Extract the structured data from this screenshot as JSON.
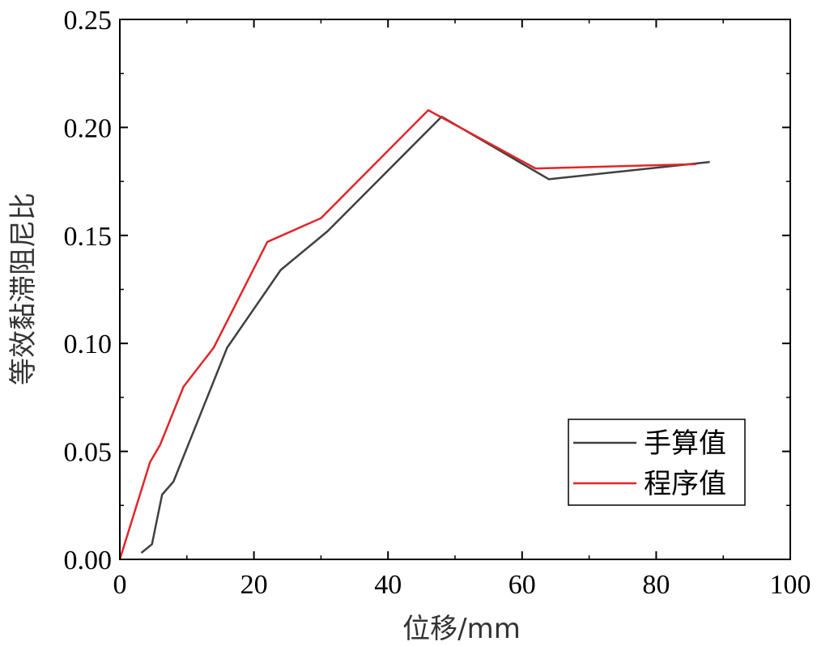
{
  "chart_data": {
    "type": "line",
    "title": "",
    "xlabel": "位移/mm",
    "ylabel": "等效黏滞阻尼比",
    "xlim": [
      0,
      100
    ],
    "ylim": [
      0,
      0.25
    ],
    "xticks": [
      "0",
      "20",
      "40",
      "60",
      "80",
      "100"
    ],
    "yticks": [
      "0.00",
      "0.05",
      "0.10",
      "0.15",
      "0.20",
      "0.25"
    ],
    "grid": false,
    "legend_position": "bottom-right",
    "series": [
      {
        "name": "手算值",
        "color": "#404040",
        "x": [
          3.2,
          4.8,
          6.3,
          8.0,
          16.0,
          24.0,
          31.0,
          48.0,
          64.0,
          88.0
        ],
        "y": [
          0.003,
          0.007,
          0.03,
          0.036,
          0.098,
          0.134,
          0.152,
          0.205,
          0.176,
          0.184
        ]
      },
      {
        "name": "程序值",
        "color": "#e0262a",
        "x": [
          0,
          4.5,
          6.0,
          9.5,
          14.0,
          22.0,
          30.0,
          46.0,
          62.0,
          86.0
        ],
        "y": [
          0.0,
          0.045,
          0.053,
          0.08,
          0.098,
          0.147,
          0.158,
          0.208,
          0.181,
          0.183
        ]
      }
    ]
  }
}
